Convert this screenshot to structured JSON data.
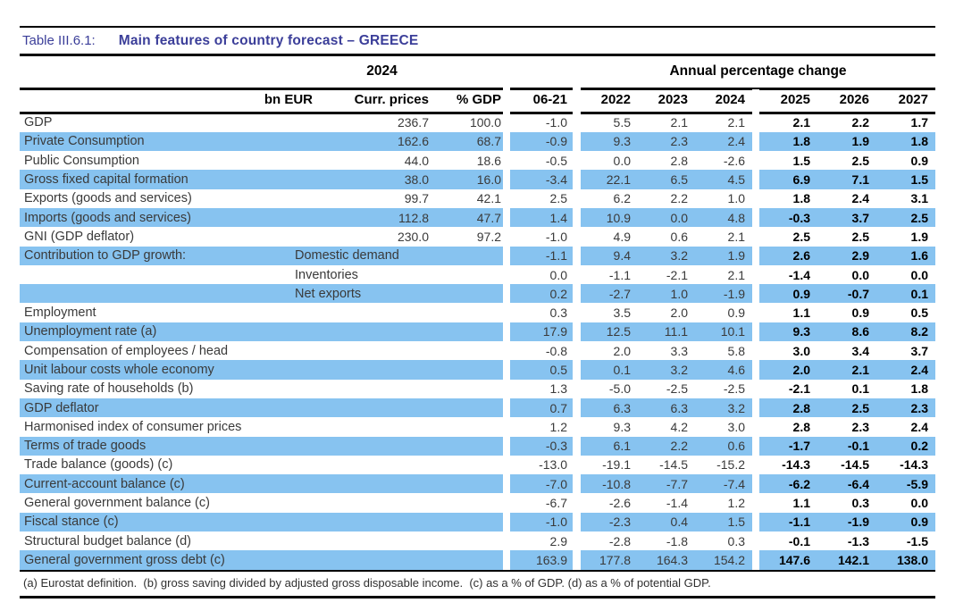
{
  "title": {
    "prefix": "Table III.6.1:",
    "main": "Main features of country forecast – GREECE"
  },
  "table": {
    "group_headers": {
      "year": "2024",
      "apc": "Annual percentage change"
    },
    "columns": {
      "bn_eur": "bn EUR",
      "curr_prices": "Curr. prices",
      "pct_gdp": "% GDP",
      "avg": "06-21",
      "y2022": "2022",
      "y2023": "2023",
      "y2024": "2024",
      "y2025": "2025",
      "y2026": "2026",
      "y2027": "2027"
    },
    "rows": [
      {
        "label": "GDP",
        "sublabel": "",
        "curr": "236.7",
        "gdp": "100.0",
        "values": [
          "-1.0",
          "5.5",
          "2.1",
          "2.1",
          "2.1",
          "2.2",
          "1.7"
        ],
        "highlight": false
      },
      {
        "label": "Private Consumption",
        "sublabel": "",
        "curr": "162.6",
        "gdp": "68.7",
        "values": [
          "-0.9",
          "9.3",
          "2.3",
          "2.4",
          "1.8",
          "1.9",
          "1.8"
        ],
        "highlight": true
      },
      {
        "label": "Public Consumption",
        "sublabel": "",
        "curr": "44.0",
        "gdp": "18.6",
        "values": [
          "-0.5",
          "0.0",
          "2.8",
          "-2.6",
          "1.5",
          "2.5",
          "0.9"
        ],
        "highlight": false
      },
      {
        "label": "Gross fixed capital formation",
        "sublabel": "",
        "curr": "38.0",
        "gdp": "16.0",
        "values": [
          "-3.4",
          "22.1",
          "6.5",
          "4.5",
          "6.9",
          "7.1",
          "1.5"
        ],
        "highlight": true
      },
      {
        "label": "Exports (goods and services)",
        "sublabel": "",
        "curr": "99.7",
        "gdp": "42.1",
        "values": [
          "2.5",
          "6.2",
          "2.2",
          "1.0",
          "1.8",
          "2.4",
          "3.1"
        ],
        "highlight": false
      },
      {
        "label": "Imports (goods and services)",
        "sublabel": "",
        "curr": "112.8",
        "gdp": "47.7",
        "values": [
          "1.4",
          "10.9",
          "0.0",
          "4.8",
          "-0.3",
          "3.7",
          "2.5"
        ],
        "highlight": true
      },
      {
        "label": "GNI (GDP deflator)",
        "sublabel": "",
        "curr": "230.0",
        "gdp": "97.2",
        "values": [
          "-1.0",
          "4.9",
          "0.6",
          "2.1",
          "2.5",
          "2.5",
          "1.9"
        ],
        "highlight": false
      },
      {
        "label": "Contribution to GDP growth:",
        "sublabel": "Domestic demand",
        "curr": "",
        "gdp": "",
        "values": [
          "-1.1",
          "9.4",
          "3.2",
          "1.9",
          "2.6",
          "2.9",
          "1.6"
        ],
        "highlight": true
      },
      {
        "label": "",
        "sublabel": "Inventories",
        "curr": "",
        "gdp": "",
        "values": [
          "0.0",
          "-1.1",
          "-2.1",
          "2.1",
          "-1.4",
          "0.0",
          "0.0"
        ],
        "highlight": false
      },
      {
        "label": "",
        "sublabel": "Net exports",
        "curr": "",
        "gdp": "",
        "values": [
          "0.2",
          "-2.7",
          "1.0",
          "-1.9",
          "0.9",
          "-0.7",
          "0.1"
        ],
        "highlight": true
      },
      {
        "label": "Employment",
        "sublabel": "",
        "curr": "",
        "gdp": "",
        "values": [
          "0.3",
          "3.5",
          "2.0",
          "0.9",
          "1.1",
          "0.9",
          "0.5"
        ],
        "highlight": false
      },
      {
        "label": "Unemployment rate (a)",
        "sublabel": "",
        "curr": "",
        "gdp": "",
        "values": [
          "17.9",
          "12.5",
          "11.1",
          "10.1",
          "9.3",
          "8.6",
          "8.2"
        ],
        "highlight": true
      },
      {
        "label": "Compensation of employees / head",
        "sublabel": "",
        "curr": "",
        "gdp": "",
        "values": [
          "-0.8",
          "2.0",
          "3.3",
          "5.8",
          "3.0",
          "3.4",
          "3.7"
        ],
        "highlight": false
      },
      {
        "label": "Unit labour costs whole economy",
        "sublabel": "",
        "curr": "",
        "gdp": "",
        "values": [
          "0.5",
          "0.1",
          "3.2",
          "4.6",
          "2.0",
          "2.1",
          "2.4"
        ],
        "highlight": true
      },
      {
        "label": "Saving rate of households (b)",
        "sublabel": "",
        "curr": "",
        "gdp": "",
        "values": [
          "1.3",
          "-5.0",
          "-2.5",
          "-2.5",
          "-2.1",
          "0.1",
          "1.8"
        ],
        "highlight": false
      },
      {
        "label": "GDP deflator",
        "sublabel": "",
        "curr": "",
        "gdp": "",
        "values": [
          "0.7",
          "6.3",
          "6.3",
          "3.2",
          "2.8",
          "2.5",
          "2.3"
        ],
        "highlight": true
      },
      {
        "label": "Harmonised index of consumer prices",
        "sublabel": "",
        "curr": "",
        "gdp": "",
        "values": [
          "1.2",
          "9.3",
          "4.2",
          "3.0",
          "2.8",
          "2.3",
          "2.4"
        ],
        "highlight": false
      },
      {
        "label": "Terms of trade goods",
        "sublabel": "",
        "curr": "",
        "gdp": "",
        "values": [
          "-0.3",
          "6.1",
          "2.2",
          "0.6",
          "-1.7",
          "-0.1",
          "0.2"
        ],
        "highlight": true
      },
      {
        "label": "Trade balance (goods) (c)",
        "sublabel": "",
        "curr": "",
        "gdp": "",
        "values": [
          "-13.0",
          "-19.1",
          "-14.5",
          "-15.2",
          "-14.3",
          "-14.5",
          "-14.3"
        ],
        "highlight": false
      },
      {
        "label": "Current-account balance (c)",
        "sublabel": "",
        "curr": "",
        "gdp": "",
        "values": [
          "-7.0",
          "-10.8",
          "-7.7",
          "-7.4",
          "-6.2",
          "-6.4",
          "-5.9"
        ],
        "highlight": true
      },
      {
        "label": "General government balance (c)",
        "sublabel": "",
        "curr": "",
        "gdp": "",
        "values": [
          "-6.7",
          "-2.6",
          "-1.4",
          "1.2",
          "1.1",
          "0.3",
          "0.0"
        ],
        "highlight": false
      },
      {
        "label": "Fiscal stance (c)",
        "sublabel": "",
        "curr": "",
        "gdp": "",
        "values": [
          "-1.0",
          "-2.3",
          "0.4",
          "1.5",
          "-1.1",
          "-1.9",
          "0.9"
        ],
        "highlight": true
      },
      {
        "label": "Structural budget balance (d)",
        "sublabel": "",
        "curr": "",
        "gdp": "",
        "values": [
          "2.9",
          "-2.8",
          "-1.8",
          "0.3",
          "-0.1",
          "-1.3",
          "-1.5"
        ],
        "highlight": false
      },
      {
        "label": "General government gross debt (c)",
        "sublabel": "",
        "curr": "",
        "gdp": "",
        "values": [
          "163.9",
          "177.8",
          "164.3",
          "154.2",
          "147.6",
          "142.1",
          "138.0"
        ],
        "highlight": true
      }
    ]
  },
  "footnote": "(a) Eurostat definition.  (b) gross saving divided by adjusted gross disposable income.  (c) as a % of GDP. (d) as a % of potential GDP.",
  "colors": {
    "highlight": "#87C3F0",
    "title": "#3B3E99",
    "rule": "#000000"
  }
}
